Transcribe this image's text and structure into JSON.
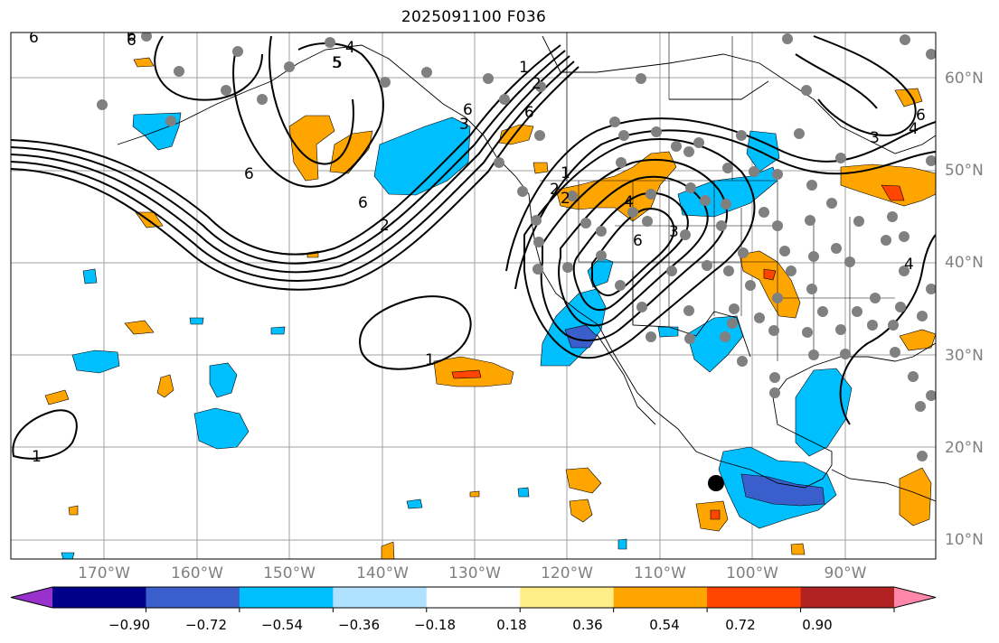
{
  "title": "2025091100 F036",
  "lon_labels": [
    "170°W",
    "160°W",
    "150°W",
    "140°W",
    "130°W",
    "120°W",
    "110°W",
    "100°W",
    "90°W"
  ],
  "lat_labels": [
    "60°N",
    "50°N",
    "40°N",
    "30°N",
    "20°N",
    "10°N"
  ],
  "colorbar": {
    "ticks": [
      "−0.90",
      "−0.72",
      "−0.54",
      "−0.36",
      "−0.18",
      "0.18",
      "0.36",
      "0.54",
      "0.72",
      "0.90"
    ],
    "colors": [
      "#9932cc",
      "#00008b",
      "#3a5fcd",
      "#00bfff",
      "#b0e2ff",
      "#ffffff",
      "#ffee88",
      "#ffa500",
      "#ff4500",
      "#b22222",
      "#ff88aa"
    ]
  },
  "contour_labels": [
    "6",
    "6",
    "4",
    "5",
    "5",
    "6",
    "6",
    "2",
    "6",
    "2",
    "6",
    "1",
    "1",
    "2",
    "3",
    "4",
    "2",
    "6",
    "3",
    "3",
    "6",
    "4",
    "4",
    "1",
    "6",
    "1"
  ],
  "marker": {
    "symbol": "●",
    "description": "storm-center"
  }
}
